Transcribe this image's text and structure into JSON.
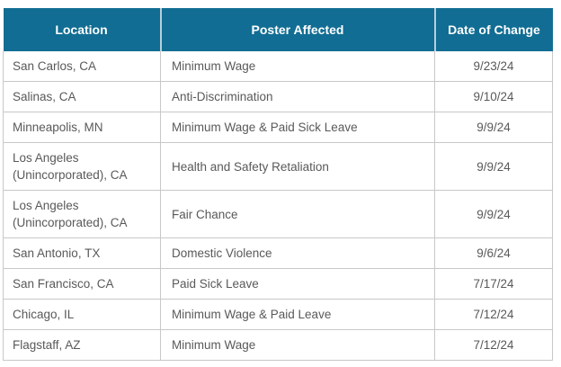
{
  "chart_data": {
    "type": "table",
    "title": "",
    "columns": [
      "Location",
      "Poster Affected",
      "Date of Change"
    ],
    "rows": [
      {
        "location": "San Carlos, CA",
        "poster": "Minimum Wage",
        "date": "9/23/24"
      },
      {
        "location": "Salinas, CA",
        "poster": "Anti-Discrimination",
        "date": "9/10/24"
      },
      {
        "location": "Minneapolis, MN",
        "poster": "Minimum Wage & Paid Sick Leave",
        "date": "9/9/24"
      },
      {
        "location": "Los Angeles (Unincorporated), CA",
        "poster": "Health and Safety Retaliation",
        "date": "9/9/24"
      },
      {
        "location": "Los Angeles (Unincorporated), CA",
        "poster": "Fair Chance",
        "date": "9/9/24"
      },
      {
        "location": "San Antonio, TX",
        "poster": "Domestic Violence",
        "date": "9/6/24"
      },
      {
        "location": "San Francisco, CA",
        "poster": "Paid Sick Leave",
        "date": "7/17/24"
      },
      {
        "location": "Chicago, IL",
        "poster": "Minimum Wage & Paid Leave",
        "date": "7/12/24"
      },
      {
        "location": "Flagstaff, AZ",
        "poster": "Minimum Wage",
        "date": "7/12/24"
      }
    ],
    "layout": {
      "header_alignment": "center",
      "date_alignment": "center",
      "grid": true
    },
    "colors": {
      "header_bg": "#116D93",
      "header_text": "#FFFFFF",
      "header_divider": "#B8CFDA",
      "body_text": "#595959",
      "border": "#C8C8C8",
      "row_bg": "#FFFFFF"
    }
  }
}
